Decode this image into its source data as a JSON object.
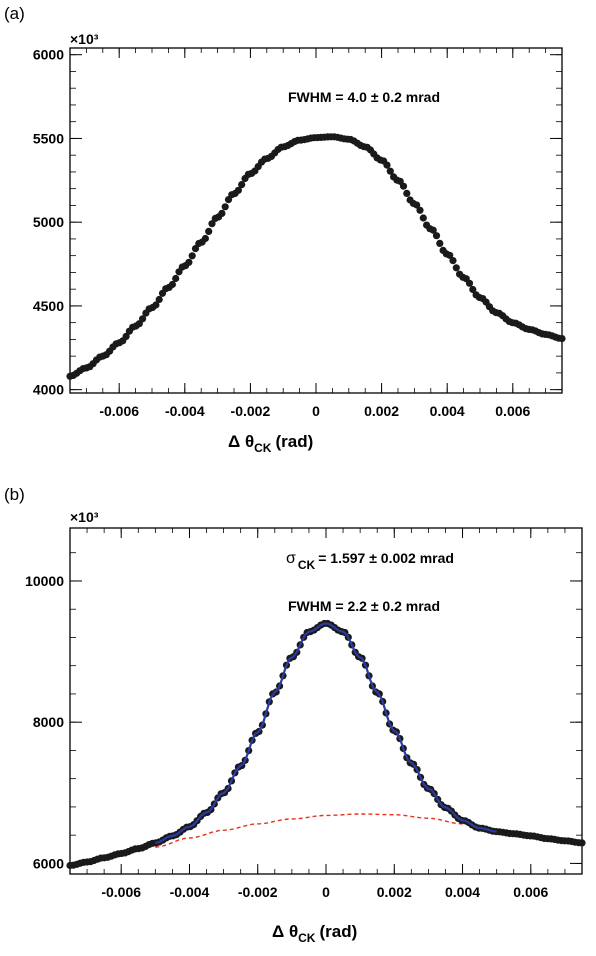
{
  "chart_data": [
    {
      "panel": "(a)",
      "type": "scatter",
      "y_multiplier": "×10³",
      "xlabel": "Δ θCK (rad)",
      "xlabel_parts": {
        "delta": "Δ θ",
        "sub": "CK",
        "unit": "(rad)"
      },
      "ylabel": "",
      "xlim": [
        -0.0075,
        0.0075
      ],
      "ylim": [
        3980,
        6040
      ],
      "xticks": [
        -0.006,
        -0.004,
        -0.002,
        0,
        0.002,
        0.004,
        0.006
      ],
      "xtick_labels": [
        "-0.006",
        "-0.004",
        "-0.002",
        "0",
        "0.002",
        "0.004",
        "0.006"
      ],
      "yticks": [
        4000,
        4500,
        5000,
        5500,
        6000
      ],
      "ytick_labels": [
        "4000",
        "4500",
        "5000",
        "5500",
        "6000"
      ],
      "annotations": [
        "FWHM = 4.0 ± 0.2 mrad"
      ],
      "x": [
        -0.0075,
        -0.007,
        -0.0065,
        -0.006,
        -0.0055,
        -0.005,
        -0.0045,
        -0.004,
        -0.0035,
        -0.003,
        -0.0025,
        -0.002,
        -0.0015,
        -0.001,
        -0.0005,
        0,
        0.0005,
        0.001,
        0.0015,
        0.002,
        0.0025,
        0.003,
        0.0035,
        0.004,
        0.0045,
        0.005,
        0.0055,
        0.006,
        0.0065,
        0.007,
        0.0075
      ],
      "values": [
        4080,
        4130,
        4200,
        4280,
        4380,
        4490,
        4610,
        4740,
        4880,
        5030,
        5170,
        5290,
        5380,
        5450,
        5490,
        5505,
        5510,
        5495,
        5450,
        5370,
        5250,
        5110,
        4960,
        4810,
        4670,
        4550,
        4460,
        4400,
        4360,
        4330,
        4305
      ],
      "marker_color": "#1a1a1a"
    },
    {
      "panel": "(b)",
      "type": "scatter",
      "y_multiplier": "×10³",
      "xlabel": "Δ θCK (rad)",
      "xlabel_parts": {
        "delta": "Δ θ",
        "sub": "CK",
        "unit": "(rad)"
      },
      "ylabel": "",
      "xlim": [
        -0.0075,
        0.0075
      ],
      "ylim": [
        5850,
        10750
      ],
      "xticks": [
        -0.006,
        -0.004,
        -0.002,
        0,
        0.002,
        0.004,
        0.006
      ],
      "xtick_labels": [
        "-0.006",
        "-0.004",
        "-0.002",
        "0",
        "0.002",
        "0.004",
        "0.006"
      ],
      "yticks": [
        6000,
        8000,
        10000
      ],
      "ytick_labels": [
        "6000",
        "8000",
        "10000"
      ],
      "annotations": [
        {
          "sigma": "σ",
          "sub": "CK",
          "rest": "= 1.597 ± 0.002 mrad"
        },
        "FWHM = 2.2 ± 0.2 mrad"
      ],
      "x": [
        -0.0075,
        -0.007,
        -0.0065,
        -0.006,
        -0.0055,
        -0.005,
        -0.0045,
        -0.004,
        -0.0035,
        -0.003,
        -0.0025,
        -0.002,
        -0.0015,
        -0.001,
        -0.0005,
        0,
        0.0005,
        0.001,
        0.0015,
        0.002,
        0.0025,
        0.003,
        0.0035,
        0.004,
        0.0045,
        0.005,
        0.0055,
        0.006,
        0.0065,
        0.007,
        0.0075
      ],
      "values": [
        5970,
        6020,
        6080,
        6140,
        6210,
        6290,
        6390,
        6520,
        6720,
        7000,
        7380,
        7860,
        8420,
        8920,
        9280,
        9400,
        9280,
        8920,
        8420,
        7880,
        7420,
        7060,
        6790,
        6610,
        6500,
        6450,
        6420,
        6390,
        6350,
        6320,
        6290
      ],
      "marker_color": "#1a1a1a",
      "fit": {
        "color": "#2a3a9e",
        "x": [
          -0.005,
          -0.0045,
          -0.004,
          -0.0035,
          -0.003,
          -0.0025,
          -0.002,
          -0.0015,
          -0.001,
          -0.0005,
          0,
          0.0005,
          0.001,
          0.0015,
          0.002,
          0.0025,
          0.003,
          0.0035,
          0.004,
          0.0045,
          0.005
        ],
        "values": [
          6290,
          6390,
          6520,
          6720,
          7000,
          7380,
          7860,
          8420,
          8920,
          9280,
          9400,
          9280,
          8920,
          8420,
          7880,
          7420,
          7060,
          6790,
          6610,
          6500,
          6450
        ]
      },
      "background": {
        "color": "#e8321e",
        "style": "dashed",
        "x": [
          -0.005,
          -0.004,
          -0.003,
          -0.002,
          -0.001,
          0,
          0.001,
          0.002,
          0.003,
          0.004,
          0.005
        ],
        "values": [
          6230,
          6360,
          6470,
          6560,
          6630,
          6680,
          6700,
          6690,
          6640,
          6560,
          6450
        ]
      }
    }
  ]
}
